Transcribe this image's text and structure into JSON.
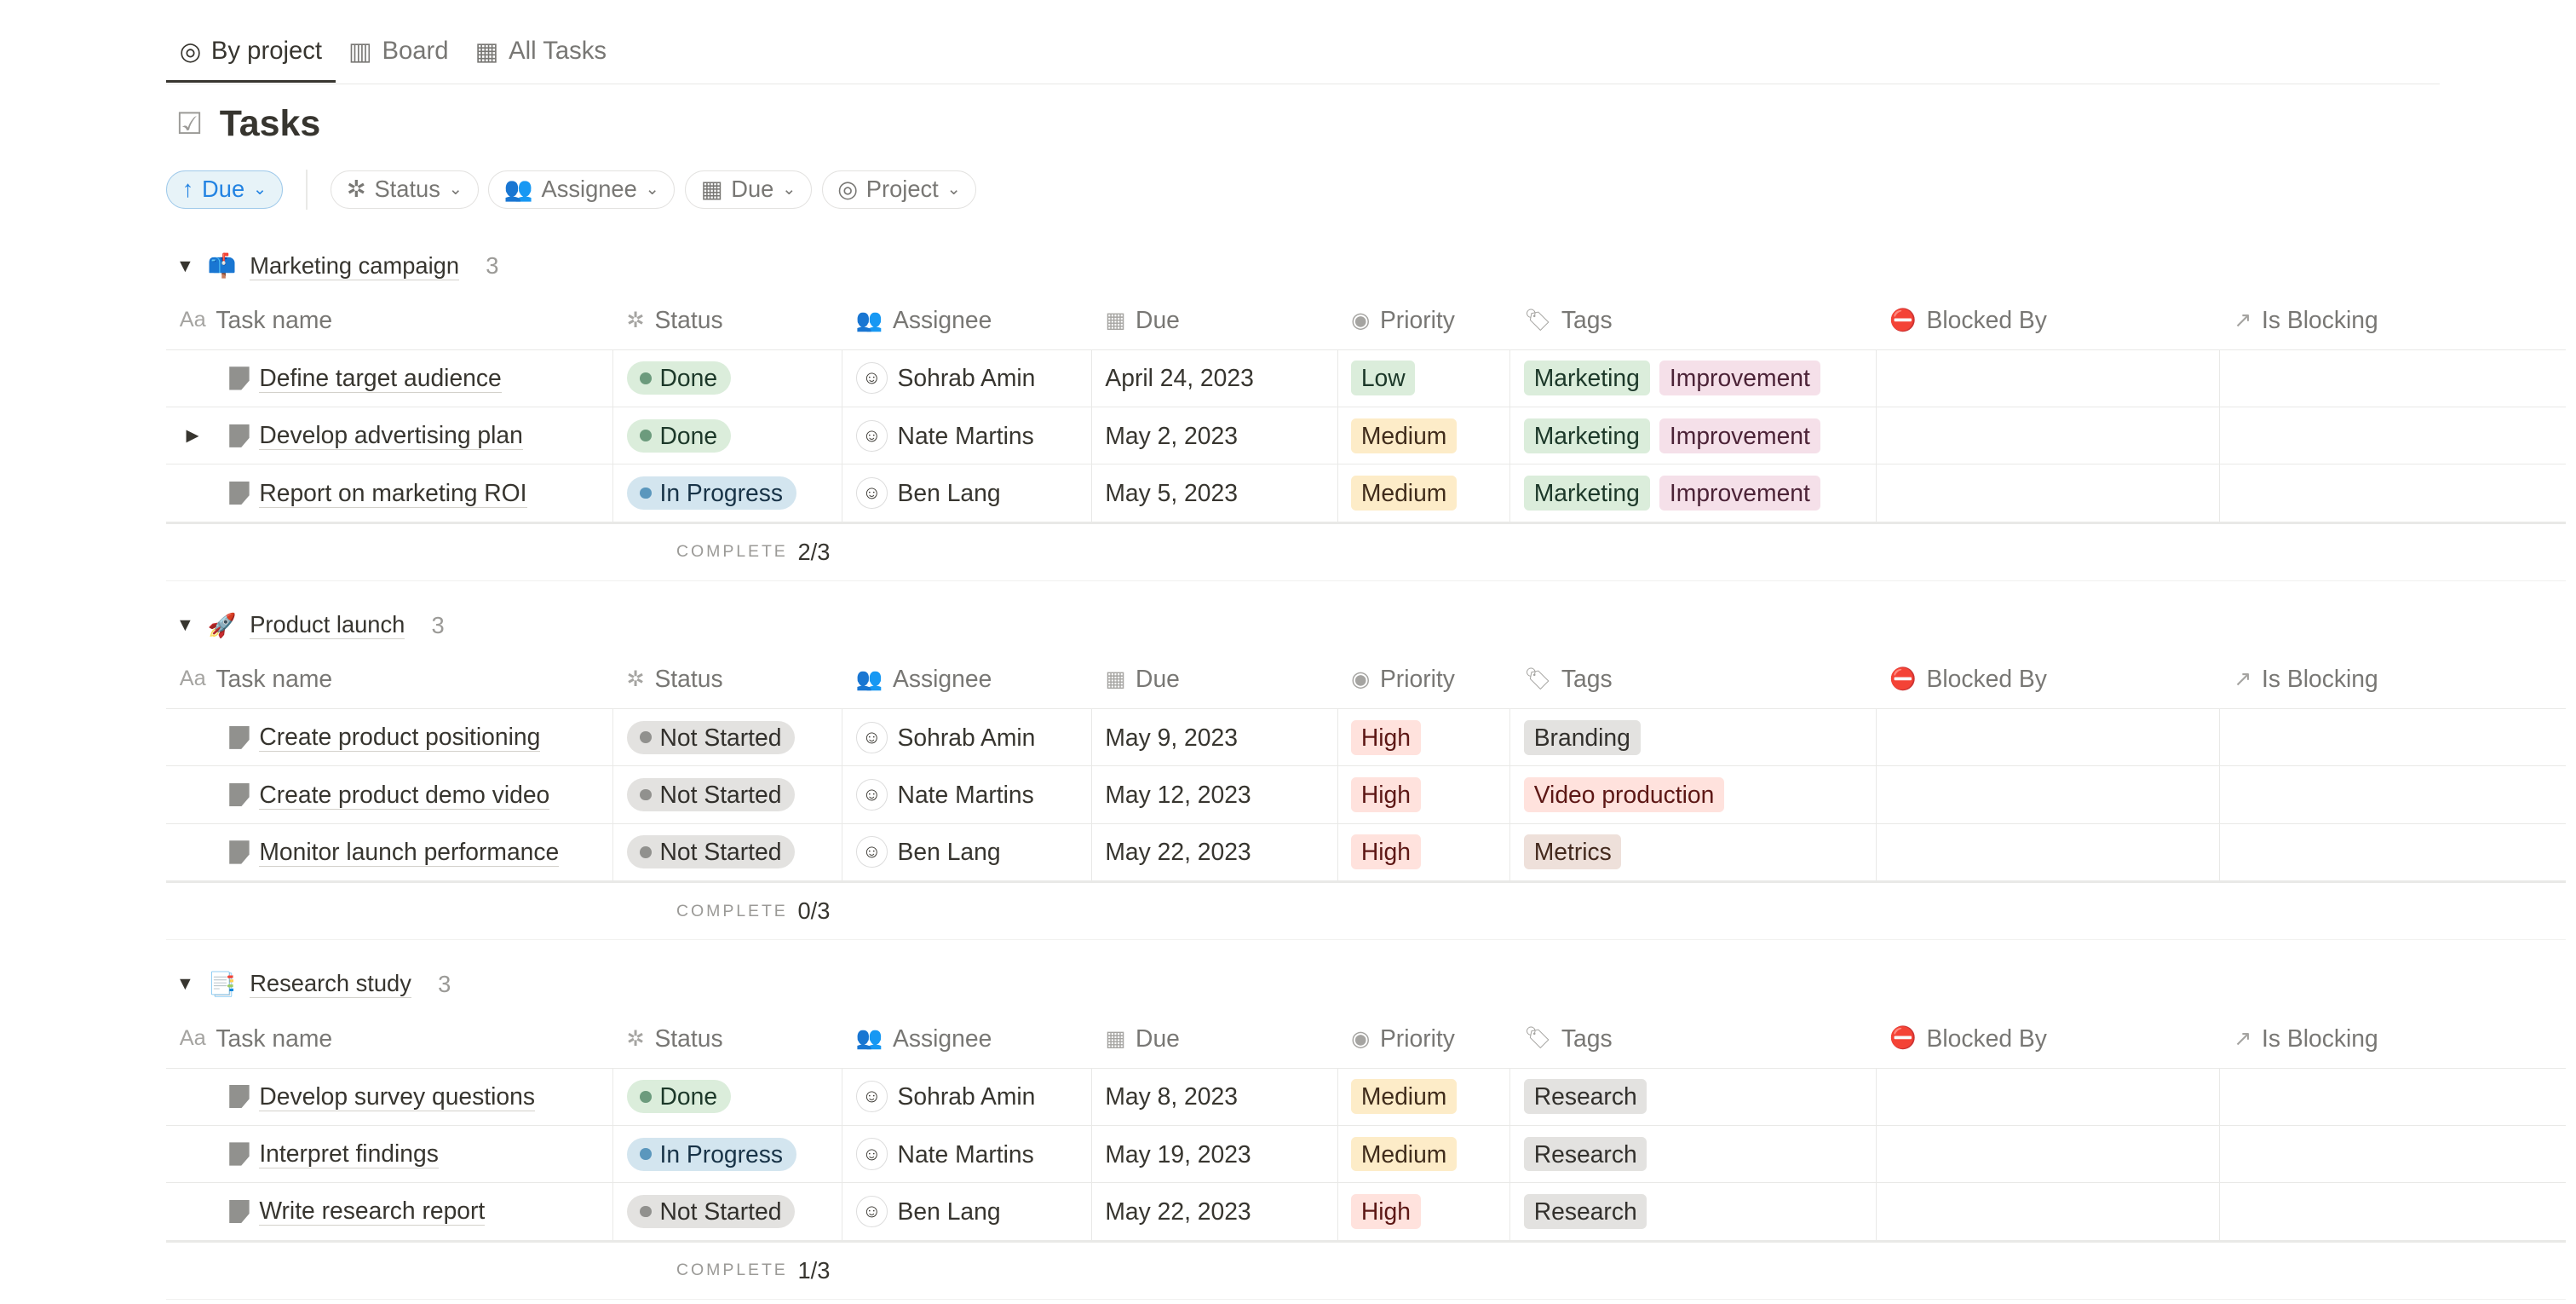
{
  "tabs": [
    {
      "label": "By project",
      "icon": "target-icon",
      "active": true
    },
    {
      "label": "Board",
      "icon": "board-icon"
    },
    {
      "label": "All Tasks",
      "icon": "table-icon"
    }
  ],
  "title": "Tasks",
  "filters": {
    "sort": "Due",
    "items": [
      {
        "label": "Status",
        "icon": "status-icon"
      },
      {
        "label": "Assignee",
        "icon": "people-icon"
      },
      {
        "label": "Due",
        "icon": "calendar-icon"
      },
      {
        "label": "Project",
        "icon": "target-icon"
      }
    ]
  },
  "columns": [
    {
      "label": "Task name",
      "icon": "Aa"
    },
    {
      "label": "Status",
      "icon": "✲"
    },
    {
      "label": "Assignee",
      "icon": "👥"
    },
    {
      "label": "Due",
      "icon": "▦"
    },
    {
      "label": "Priority",
      "icon": "◉"
    },
    {
      "label": "Tags",
      "icon": "🏷"
    },
    {
      "label": "Blocked By",
      "icon": "⛔"
    },
    {
      "label": "Is Blocking",
      "icon": "↗"
    }
  ],
  "footer_label": "COMPLETE",
  "colors": {
    "status": {
      "Done": [
        "#dbeddb",
        "#1c3829",
        "#6c9b7d"
      ],
      "In Progress": [
        "#d3e5ef",
        "#183347",
        "#5b97bd"
      ],
      "Not Started": [
        "#e3e2e0",
        "#32302c",
        "#91918e"
      ]
    },
    "priority": {
      "Low": [
        "#dbeddb",
        "#1c3829"
      ],
      "Medium": [
        "#fdecc8",
        "#402c1b"
      ],
      "High": [
        "#ffe2dd",
        "#5d1715"
      ]
    },
    "tags": {
      "Marketing": [
        "#dbeddb",
        "#1c3829"
      ],
      "Improvement": [
        "#f5e0e9",
        "#4c2337"
      ],
      "Branding": [
        "#e3e2e0",
        "#32302c"
      ],
      "Video production": [
        "#ffe2dd",
        "#5d1715"
      ],
      "Metrics": [
        "#eee0da",
        "#442a1e"
      ],
      "Research": [
        "#e3e2e0",
        "#32302c"
      ]
    }
  },
  "groups": [
    {
      "emoji": "📫",
      "name": "Marketing campaign",
      "count": "3",
      "complete": "2/3",
      "tasks": [
        {
          "name": "Define target audience",
          "status": "Done",
          "assignee": "Sohrab Amin",
          "due": "April 24, 2023",
          "priority": "Low",
          "tags": [
            "Marketing",
            "Improvement"
          ]
        },
        {
          "name": "Develop advertising plan",
          "status": "Done",
          "assignee": "Nate Martins",
          "due": "May 2, 2023",
          "priority": "Medium",
          "tags": [
            "Marketing",
            "Improvement"
          ],
          "expandable": true
        },
        {
          "name": "Report on marketing ROI",
          "status": "In Progress",
          "assignee": "Ben Lang",
          "due": "May 5, 2023",
          "priority": "Medium",
          "tags": [
            "Marketing",
            "Improvement"
          ]
        }
      ]
    },
    {
      "emoji": "🚀",
      "name": "Product launch",
      "count": "3",
      "complete": "0/3",
      "tasks": [
        {
          "name": "Create product positioning",
          "status": "Not Started",
          "assignee": "Sohrab Amin",
          "due": "May 9, 2023",
          "priority": "High",
          "tags": [
            "Branding"
          ]
        },
        {
          "name": "Create product demo video",
          "status": "Not Started",
          "assignee": "Nate Martins",
          "due": "May 12, 2023",
          "priority": "High",
          "tags": [
            "Video production"
          ]
        },
        {
          "name": "Monitor launch performance",
          "status": "Not Started",
          "assignee": "Ben Lang",
          "due": "May 22, 2023",
          "priority": "High",
          "tags": [
            "Metrics"
          ]
        }
      ]
    },
    {
      "emoji": "📑",
      "name": "Research study",
      "count": "3",
      "complete": "1/3",
      "tasks": [
        {
          "name": "Develop survey questions",
          "status": "Done",
          "assignee": "Sohrab Amin",
          "due": "May 8, 2023",
          "priority": "Medium",
          "tags": [
            "Research"
          ]
        },
        {
          "name": "Interpret findings",
          "status": "In Progress",
          "assignee": "Nate Martins",
          "due": "May 19, 2023",
          "priority": "Medium",
          "tags": [
            "Research"
          ]
        },
        {
          "name": "Write research report",
          "status": "Not Started",
          "assignee": "Ben Lang",
          "due": "May 22, 2023",
          "priority": "High",
          "tags": [
            "Research"
          ]
        }
      ]
    }
  ]
}
